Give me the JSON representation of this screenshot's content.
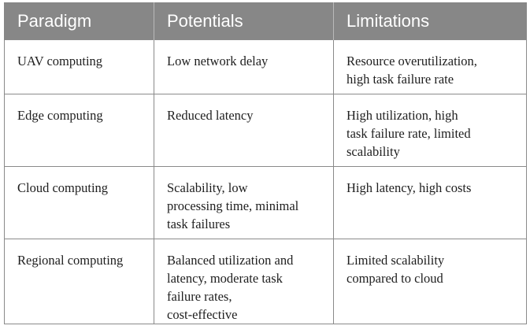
{
  "table": {
    "headers": [
      "Paradigm",
      "Potentials",
      "Limitations"
    ],
    "rows": [
      {
        "paradigm": "UAV computing",
        "potentials": [
          "Low network delay"
        ],
        "limitations": [
          "Resource overutilization,",
          "high task failure rate"
        ]
      },
      {
        "paradigm": "Edge computing",
        "potentials": [
          "Reduced latency"
        ],
        "limitations": [
          "High utilization, high",
          "task failure rate, limited",
          "scalability"
        ]
      },
      {
        "paradigm": "Cloud computing",
        "potentials": [
          "Scalability, low",
          "processing time, minimal",
          "task failures"
        ],
        "limitations": [
          "High latency, high costs"
        ]
      },
      {
        "paradigm": "Regional computing",
        "potentials": [
          "Balanced utilization and",
          "latency, moderate task",
          "failure rates,",
          "cost-effective"
        ],
        "limitations": [
          "Limited scalability",
          "compared to cloud"
        ]
      }
    ]
  }
}
